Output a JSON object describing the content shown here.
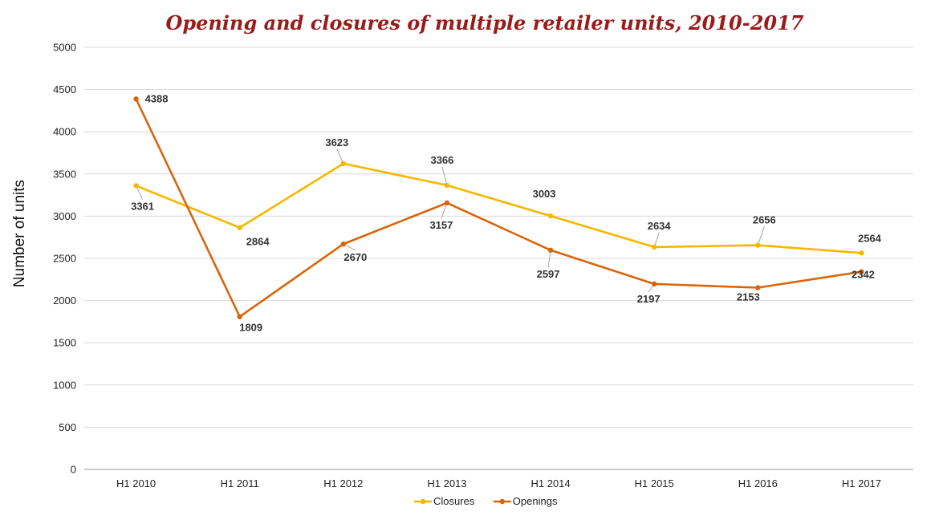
{
  "chart_data": {
    "type": "line",
    "title": "Opening and closures of multiple retailer units, 2010-2017",
    "xlabel": "",
    "ylabel": "Number of units",
    "categories": [
      "H1 2010",
      "H1 2011",
      "H1 2012",
      "H1 2013",
      "H1 2014",
      "H1 2015",
      "H1 2016",
      "H1 2017"
    ],
    "ylim": [
      0,
      5000
    ],
    "yticks": [
      0,
      500,
      1000,
      1500,
      2000,
      2500,
      3000,
      3500,
      4000,
      4500,
      5000
    ],
    "grid": true,
    "legend_position": "bottom",
    "series": [
      {
        "name": "Closures",
        "color": "#f5b700",
        "values": [
          3361,
          2864,
          3623,
          3366,
          3003,
          2634,
          2656,
          2564
        ]
      },
      {
        "name": "Openings",
        "color": "#d9650b",
        "values": [
          4388,
          1809,
          2670,
          3157,
          2597,
          2197,
          2153,
          2342
        ]
      }
    ]
  }
}
